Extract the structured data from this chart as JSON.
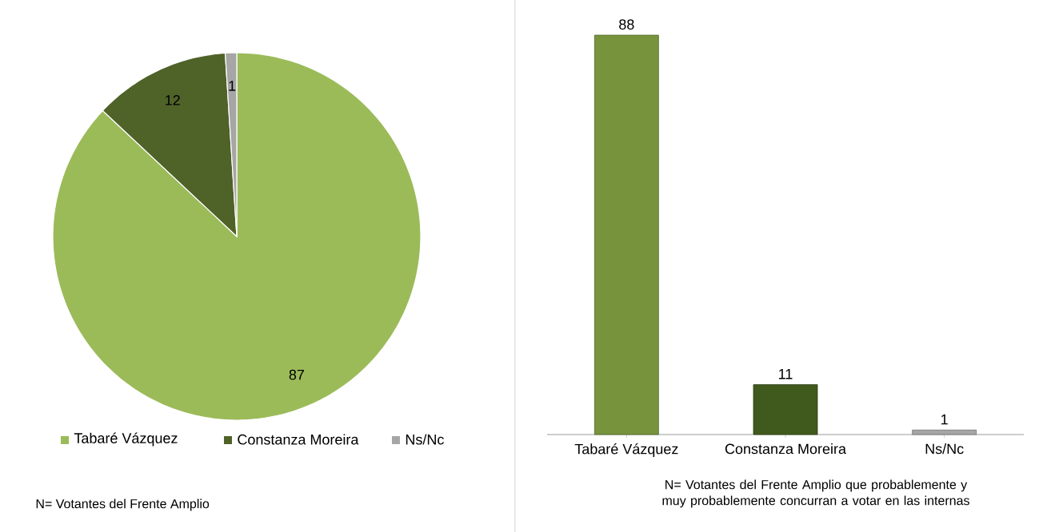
{
  "chart_data": [
    {
      "type": "pie",
      "categories": [
        "Tabaré Vázquez",
        "Constanza Moreira",
        "Ns/Nc"
      ],
      "values": [
        87,
        12,
        1
      ],
      "colors": [
        "#9bbb59",
        "#4f6228",
        "#a6a6a6"
      ],
      "data_labels": true,
      "legend": "bottom",
      "annotations": [
        "N= Votantes del Frente Amplio"
      ]
    },
    {
      "type": "bar",
      "categories": [
        "Tabaré Vázquez",
        "Constanza Moreira",
        "Ns/Nc"
      ],
      "values": [
        88,
        11,
        1
      ],
      "colors": [
        "#77933c",
        "#3f5a1c",
        "#a6a6a6"
      ],
      "data_labels": true,
      "annotations": [
        "N= Votantes del Frente Amplio  que  probablemente  y muy probablemente  concurran a votar en las internas"
      ]
    }
  ]
}
